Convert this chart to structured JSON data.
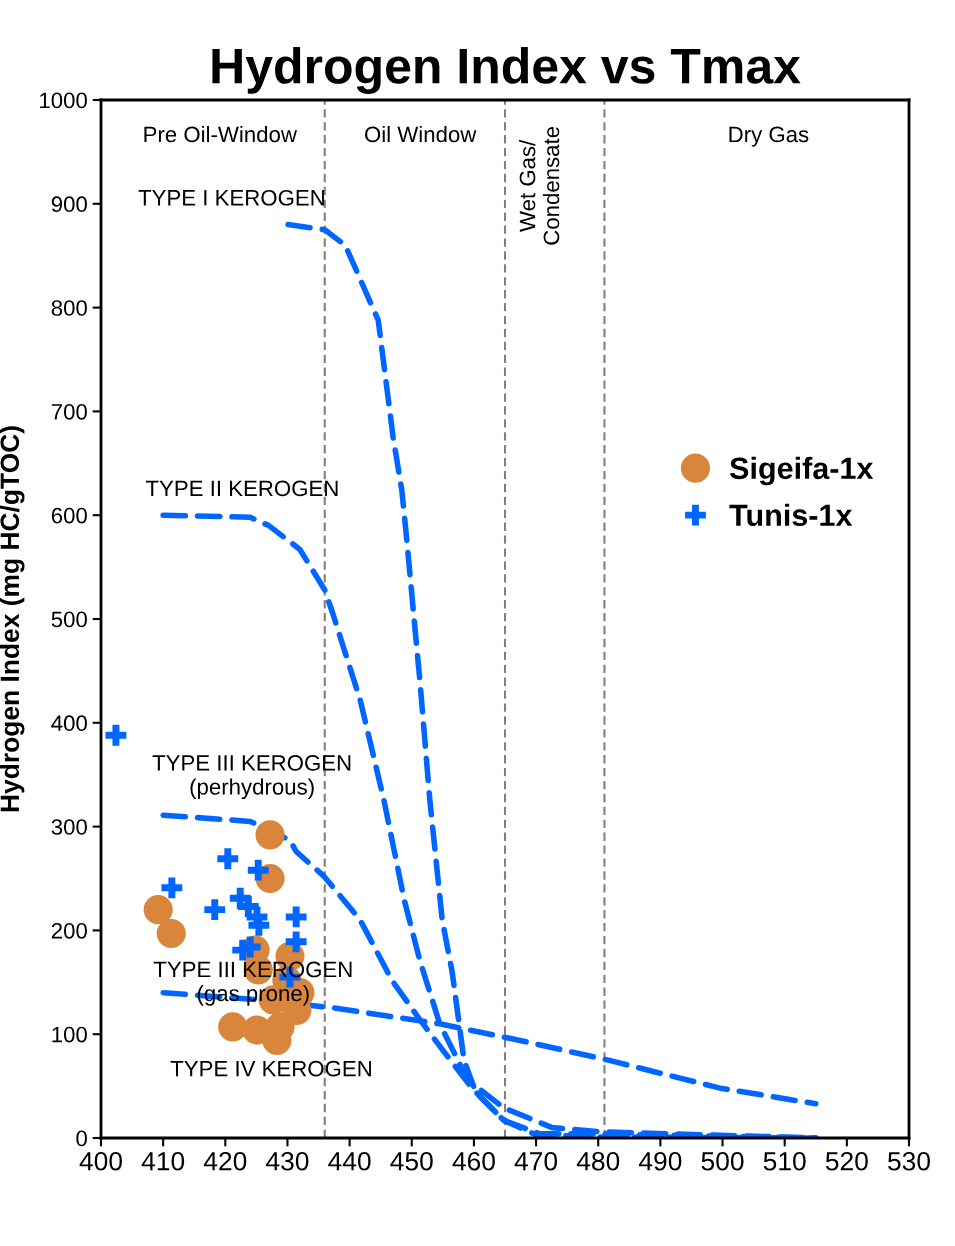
{
  "chart_data": {
    "type": "scatter",
    "title": "Hydrogen Index vs Tmax",
    "ylabel": "Hydrogen Index (mg HC/gTOC)",
    "xlim": [
      400,
      530
    ],
    "xticks": [
      400,
      410,
      420,
      430,
      440,
      450,
      460,
      470,
      480,
      490,
      500,
      510,
      520,
      530
    ],
    "ylim": [
      0,
      1000
    ],
    "yticks": [
      0,
      100,
      200,
      300,
      400,
      500,
      600,
      700,
      800,
      900,
      1000
    ],
    "grid": false,
    "legend": "right",
    "series": [
      {
        "type": "line",
        "color": "#0066ff",
        "line_style": "dashed",
        "marker": "none",
        "x": [
          430.1,
          436,
          439.3,
          444.6,
          447,
          448.4,
          449.2,
          450.2,
          451.3,
          452.9,
          454.9,
          456.5,
          458.4,
          460.3,
          464.8,
          470.6,
          479,
          515
        ],
        "values": [
          880,
          875,
          860,
          788,
          675,
          624,
          576,
          511,
          441,
          326,
          210,
          160,
          75,
          44,
          17,
          4,
          4,
          0
        ]
      },
      {
        "type": "line",
        "color": "#0066ff",
        "line_style": "dashed",
        "marker": "none",
        "x": [
          410,
          424,
          427,
          432,
          436,
          437.2,
          441.7,
          445.5,
          448.8,
          451.3,
          454.5,
          459,
          464.8,
          472.6,
          480.3,
          515
        ],
        "values": [
          600,
          598,
          590,
          567,
          528,
          507,
          422,
          326,
          229,
          171,
          110,
          56,
          29,
          10,
          6,
          0
        ]
      },
      {
        "type": "line",
        "color": "#0066ff",
        "line_style": "dashed",
        "marker": "none",
        "x": [
          410,
          424,
          430.4,
          431.4,
          435.9,
          441.7,
          446.8,
          451.3,
          455.2,
          459.7,
          464.8,
          470,
          480,
          515
        ],
        "values": [
          311,
          305,
          287,
          276,
          252,
          210,
          152,
          114,
          83,
          48,
          17,
          3,
          1,
          0
        ]
      },
      {
        "type": "line",
        "color": "#0066ff",
        "line_style": "dashed",
        "marker": "none",
        "x": [
          410,
          425.6,
          437.8,
          454.5,
          467.4,
          481.6,
          499.6,
          515
        ],
        "values": [
          140,
          133,
          125,
          110,
          94,
          75,
          48,
          33
        ]
      },
      {
        "name": "Sigeifa-1x",
        "color": "#d9853b",
        "marker": "circle",
        "x": [
          427.2,
          427.2,
          409.2,
          411.3,
          421.2,
          425.1,
          428.3,
          430.4,
          424.8,
          425.3,
          429.9,
          432,
          431.5,
          427.7,
          428.8
        ],
        "values": [
          292,
          250,
          220,
          197,
          107,
          104,
          94,
          175,
          181,
          162,
          152,
          140,
          123,
          133,
          107
        ]
      },
      {
        "name": "Tunis-1x",
        "color": "#0066ff",
        "marker": "cross",
        "x": [
          402.4,
          420.4,
          425.3,
          411.4,
          418.3,
          422.4,
          423.7,
          425.1,
          425.4,
          431.4,
          431.4,
          422.8,
          424,
          430.4
        ],
        "values": [
          388,
          269,
          258,
          241,
          220,
          231,
          223,
          213,
          205,
          213,
          189,
          181,
          184,
          155
        ]
      }
    ],
    "ref_lines": [
      {
        "axis": "x",
        "value": 436,
        "color": "#808080",
        "line_style": "dashed"
      },
      {
        "axis": "x",
        "value": 465,
        "color": "#808080",
        "line_style": "dashed"
      },
      {
        "axis": "x",
        "value": 481,
        "color": "#808080",
        "line_style": "dashed"
      }
    ],
    "annotations": [
      "Pre Oil-Window",
      "Oil Window",
      "Wet Gas/\nCondensate",
      "Dry Gas",
      "TYPE I KEROGEN",
      "TYPE II KEROGEN",
      "TYPE III KEROGEN\n(perhydrous)",
      {
        "text": "TYPE III KEROGEN\n(gas prone)",
        "x": 424.5,
        "y": 149
      },
      "TYPE IV KEROGEN"
    ]
  }
}
